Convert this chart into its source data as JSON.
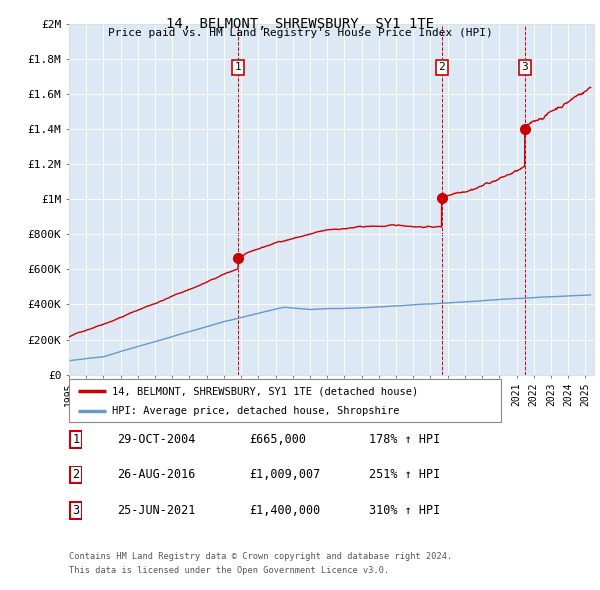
{
  "title": "14, BELMONT, SHREWSBURY, SY1 1TE",
  "subtitle": "Price paid vs. HM Land Registry's House Price Index (HPI)",
  "ylabel_ticks": [
    "£0",
    "£200K",
    "£400K",
    "£600K",
    "£800K",
    "£1M",
    "£1.2M",
    "£1.4M",
    "£1.6M",
    "£1.8M",
    "£2M"
  ],
  "ytick_values": [
    0,
    200000,
    400000,
    600000,
    800000,
    1000000,
    1200000,
    1400000,
    1600000,
    1800000,
    2000000
  ],
  "ylim": [
    0,
    2000000
  ],
  "red_line_color": "#cc0000",
  "blue_line_color": "#6699cc",
  "bg_color": "#dce9f5",
  "sale_marker_color": "#cc0000",
  "vline_color": "#cc0000",
  "sale1": {
    "year": 2004.83,
    "price": 665000,
    "label": "1"
  },
  "sale2": {
    "year": 2016.65,
    "price": 1009007,
    "label": "2"
  },
  "sale3": {
    "year": 2021.48,
    "price": 1400000,
    "label": "3"
  },
  "legend1": "14, BELMONT, SHREWSBURY, SY1 1TE (detached house)",
  "legend2": "HPI: Average price, detached house, Shropshire",
  "footer1": "Contains HM Land Registry data © Crown copyright and database right 2024.",
  "footer2": "This data is licensed under the Open Government Licence v3.0.",
  "table_entries": [
    {
      "num": "1",
      "date": "29-OCT-2004",
      "price": "£665,000",
      "pct": "178% ↑ HPI"
    },
    {
      "num": "2",
      "date": "26-AUG-2016",
      "price": "£1,009,007",
      "pct": "251% ↑ HPI"
    },
    {
      "num": "3",
      "date": "25-JUN-2021",
      "price": "£1,400,000",
      "pct": "310% ↑ HPI"
    }
  ]
}
